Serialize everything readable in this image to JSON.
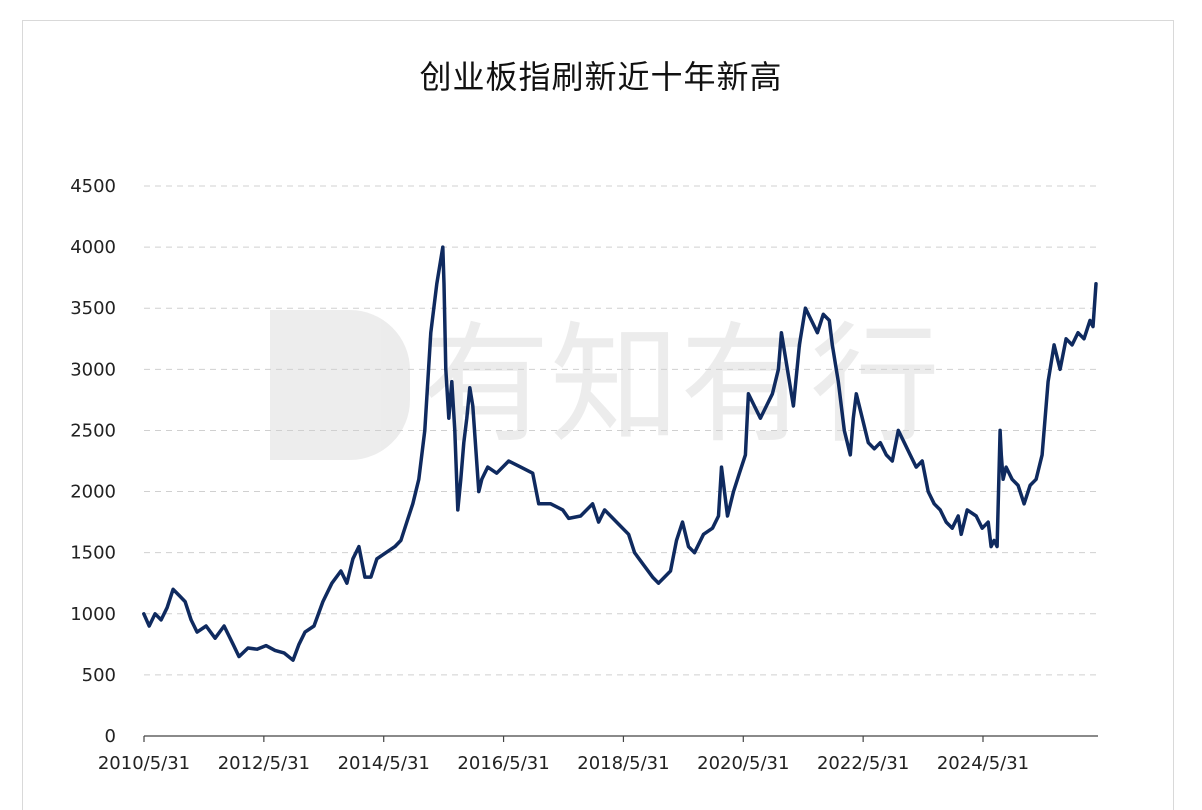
{
  "chart_data": {
    "type": "line",
    "title": "创业板指刷新近十年新高",
    "xlabel": "",
    "ylabel": "",
    "ylim": [
      0,
      4500
    ],
    "yticks": [
      0,
      500,
      1000,
      1500,
      2000,
      2500,
      3000,
      3500,
      4000,
      4500
    ],
    "xlim": [
      2010.414,
      2026.333
    ],
    "xtick_labels": [
      "2010/5/31",
      "2012/5/31",
      "2014/5/31",
      "2016/5/31",
      "2018/5/31",
      "2020/5/31",
      "2022/5/31",
      "2024/5/31"
    ],
    "xtick_values": [
      2010.414,
      2012.414,
      2014.414,
      2016.414,
      2018.414,
      2020.414,
      2022.414,
      2024.414
    ],
    "grid": true,
    "legend": "none",
    "line_color": "#0f2a5f",
    "watermark": "有知有行",
    "series": [
      {
        "x": [
          2010.41,
          2010.5,
          2010.6,
          2010.7,
          2010.8,
          2010.9,
          2011.0,
          2011.1,
          2011.2,
          2011.3,
          2011.45,
          2011.6,
          2011.75,
          2011.9,
          2012.0,
          2012.15,
          2012.3,
          2012.45,
          2012.6,
          2012.75,
          2012.9,
          2013.0,
          2013.1,
          2013.25,
          2013.4,
          2013.55,
          2013.7,
          2013.8,
          2013.9,
          2014.0,
          2014.1,
          2014.2,
          2014.3,
          2014.45,
          2014.6,
          2014.7,
          2014.8,
          2014.9,
          2015.0,
          2015.1,
          2015.2,
          2015.3,
          2015.4,
          2015.42,
          2015.45,
          2015.5,
          2015.55,
          2015.6,
          2015.65,
          2015.7,
          2015.75,
          2015.8,
          2015.85,
          2015.9,
          2016.0,
          2016.05,
          2016.15,
          2016.3,
          2016.5,
          2016.7,
          2016.9,
          2017.0,
          2017.2,
          2017.4,
          2017.5,
          2017.7,
          2017.9,
          2018.0,
          2018.1,
          2018.3,
          2018.5,
          2018.6,
          2018.75,
          2018.9,
          2019.0,
          2019.1,
          2019.2,
          2019.3,
          2019.4,
          2019.5,
          2019.6,
          2019.75,
          2019.9,
          2020.0,
          2020.05,
          2020.15,
          2020.25,
          2020.35,
          2020.45,
          2020.5,
          2020.6,
          2020.7,
          2020.8,
          2020.9,
          2021.0,
          2021.05,
          2021.15,
          2021.25,
          2021.35,
          2021.45,
          2021.55,
          2021.65,
          2021.75,
          2021.85,
          2021.9,
          2022.0,
          2022.1,
          2022.2,
          2022.25,
          2022.3,
          2022.4,
          2022.5,
          2022.6,
          2022.7,
          2022.8,
          2022.9,
          2023.0,
          2023.1,
          2023.2,
          2023.3,
          2023.4,
          2023.5,
          2023.6,
          2023.7,
          2023.8,
          2023.9,
          2024.0,
          2024.05,
          2024.15,
          2024.3,
          2024.4,
          2024.5,
          2024.55,
          2024.6,
          2024.65,
          2024.7,
          2024.72,
          2024.75,
          2024.8,
          2024.9,
          2025.0,
          2025.1,
          2025.2,
          2025.3,
          2025.4,
          2025.5,
          2025.6,
          2025.7,
          2025.8,
          2025.9,
          2026.0,
          2026.1,
          2026.2,
          2026.25,
          2026.3
        ],
        "y": [
          1000,
          900,
          1000,
          950,
          1050,
          1200,
          1150,
          1100,
          950,
          850,
          900,
          800,
          900,
          750,
          650,
          720,
          710,
          740,
          700,
          680,
          620,
          750,
          850,
          900,
          1100,
          1250,
          1350,
          1250,
          1450,
          1550,
          1300,
          1300,
          1450,
          1500,
          1550,
          1600,
          1750,
          1900,
          2100,
          2500,
          3300,
          3700,
          4000,
          3700,
          3000,
          2600,
          2900,
          2500,
          1850,
          2100,
          2400,
          2600,
          2850,
          2700,
          2000,
          2100,
          2200,
          2150,
          2250,
          2200,
          2150,
          1900,
          1900,
          1850,
          1780,
          1800,
          1900,
          1750,
          1850,
          1750,
          1650,
          1500,
          1400,
          1300,
          1250,
          1300,
          1350,
          1600,
          1750,
          1550,
          1500,
          1650,
          1700,
          1800,
          2200,
          1800,
          2000,
          2150,
          2300,
          2800,
          2700,
          2600,
          2700,
          2800,
          3000,
          3300,
          3000,
          2700,
          3200,
          3500,
          3400,
          3300,
          3450,
          3400,
          3200,
          2900,
          2500,
          2300,
          2600,
          2800,
          2600,
          2400,
          2350,
          2400,
          2300,
          2250,
          2500,
          2400,
          2300,
          2200,
          2250,
          2000,
          1900,
          1850,
          1750,
          1700,
          1800,
          1650,
          1850,
          1800,
          1700,
          1750,
          1550,
          1600,
          1550,
          2500,
          2300,
          2100,
          2200,
          2100,
          2050,
          1900,
          2050,
          2100,
          2300,
          2900,
          3200,
          3000,
          3250,
          3200,
          3300,
          3250,
          3400,
          3350,
          3700
        ]
      }
    ]
  }
}
